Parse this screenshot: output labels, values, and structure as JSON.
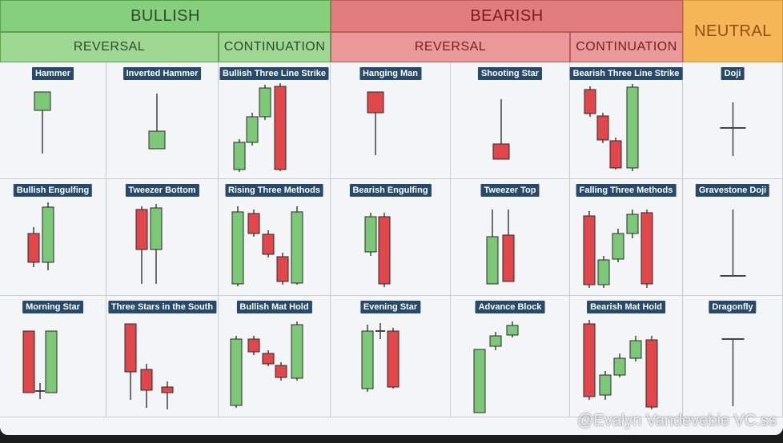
{
  "headers": {
    "bullish": "BULLISH",
    "bearish": "BEARISH",
    "neutral": "NEUTRAL",
    "bullish_reversal": "REVERSAL",
    "bullish_continuation": "CONTINUATION",
    "bearish_reversal": "REVERSAL",
    "bearish_continuation": "CONTINUATION"
  },
  "patterns": [
    [
      "Hammer",
      "Inverted Hammer",
      "Bullish Three Line Strike",
      "Hanging Man",
      "Shooting Star",
      "Bearish Three Line Strike",
      "Doji"
    ],
    [
      "Bullish Engulfing",
      "Tweezer Bottom",
      "Rising Three Methods",
      "Bearish Engulfing",
      "Tweezer Top",
      "Falling Three Methods",
      "Gravestone Doji"
    ],
    [
      "Morning Star",
      "Three Stars in the South",
      "Bullish Mat Hold",
      "Evening Star",
      "Advance Block",
      "Bearish Mat Hold",
      "Dragonfly"
    ]
  ],
  "colors": {
    "bull_candle": "#7dc779",
    "bear_candle": "#e0474a",
    "label_bg": "#27496b",
    "bullish_header": "#86cf7c",
    "bearish_header": "#e27d7f",
    "neutral_header": "#f4b657"
  },
  "watermark": "@Evalyn Vandevebie VC.ss"
}
